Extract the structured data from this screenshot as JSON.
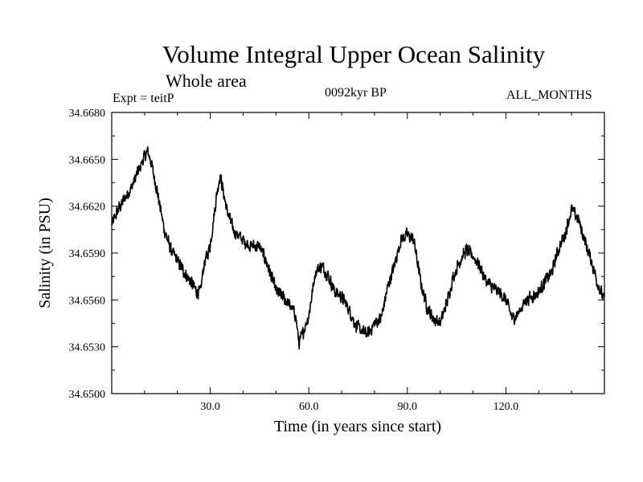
{
  "chart_data": {
    "type": "line",
    "title": "Volume Integral Upper Ocean Salinity",
    "subtitle": "Whole area",
    "annotations": {
      "experiment": "Expt = teitP",
      "epoch": "0092kyr BP",
      "months": "ALL_MONTHS"
    },
    "xlabel": "Time (in years since start)",
    "ylabel": "Salinity (in PSU)",
    "xlim": [
      0,
      150
    ],
    "ylim": [
      34.65,
      34.668
    ],
    "x_ticks": [
      30,
      60,
      90,
      120
    ],
    "x_tick_labels": [
      "30.0",
      "60.0",
      "90.0",
      "120.0"
    ],
    "y_ticks": [
      34.65,
      34.653,
      34.656,
      34.659,
      34.662,
      34.665,
      34.668
    ],
    "y_tick_labels": [
      "34.6500",
      "34.6530",
      "34.6560",
      "34.6590",
      "34.6620",
      "34.6650",
      "34.6680"
    ],
    "grid": false,
    "series": [
      {
        "name": "Salinity",
        "noise_amplitude": 0.0005,
        "x": [
          0,
          2,
          4,
          6,
          8,
          10,
          11,
          12,
          14,
          16,
          18,
          20,
          22,
          24,
          26,
          27,
          28,
          30,
          32,
          33,
          35,
          37,
          40,
          42,
          45,
          47,
          50,
          52,
          54,
          56,
          57,
          58,
          60,
          62,
          64,
          66,
          68,
          70,
          72,
          74,
          76,
          78,
          80,
          82,
          84,
          86,
          88,
          90,
          92,
          94,
          96,
          98,
          100,
          102,
          104,
          106,
          108,
          110,
          112,
          114,
          116,
          118,
          120,
          122,
          124,
          126,
          128,
          130,
          132,
          134,
          136,
          138,
          140,
          142,
          144,
          146,
          148,
          150
        ],
        "values": [
          34.6608,
          34.6618,
          34.6625,
          34.6632,
          34.6642,
          34.6652,
          34.6655,
          34.6648,
          34.6628,
          34.6605,
          34.6592,
          34.6585,
          34.6578,
          34.6572,
          34.6565,
          34.6565,
          34.6582,
          34.6595,
          34.6628,
          34.664,
          34.6618,
          34.6605,
          34.6598,
          34.6595,
          34.6594,
          34.6585,
          34.6566,
          34.6562,
          34.6557,
          34.655,
          34.6532,
          34.6538,
          34.655,
          34.6578,
          34.6582,
          34.6575,
          34.6565,
          34.6562,
          34.6555,
          34.6545,
          34.654,
          34.6538,
          34.6545,
          34.6548,
          34.6568,
          34.6582,
          34.6598,
          34.6602,
          34.6598,
          34.6572,
          34.6555,
          34.6548,
          34.6545,
          34.6558,
          34.6575,
          34.6585,
          34.6592,
          34.6588,
          34.6582,
          34.6572,
          34.6568,
          34.6565,
          34.656,
          34.6548,
          34.6552,
          34.656,
          34.6562,
          34.6565,
          34.6572,
          34.6578,
          34.6592,
          34.6602,
          34.6618,
          34.6612,
          34.6598,
          34.6585,
          34.657,
          34.656
        ]
      }
    ]
  }
}
